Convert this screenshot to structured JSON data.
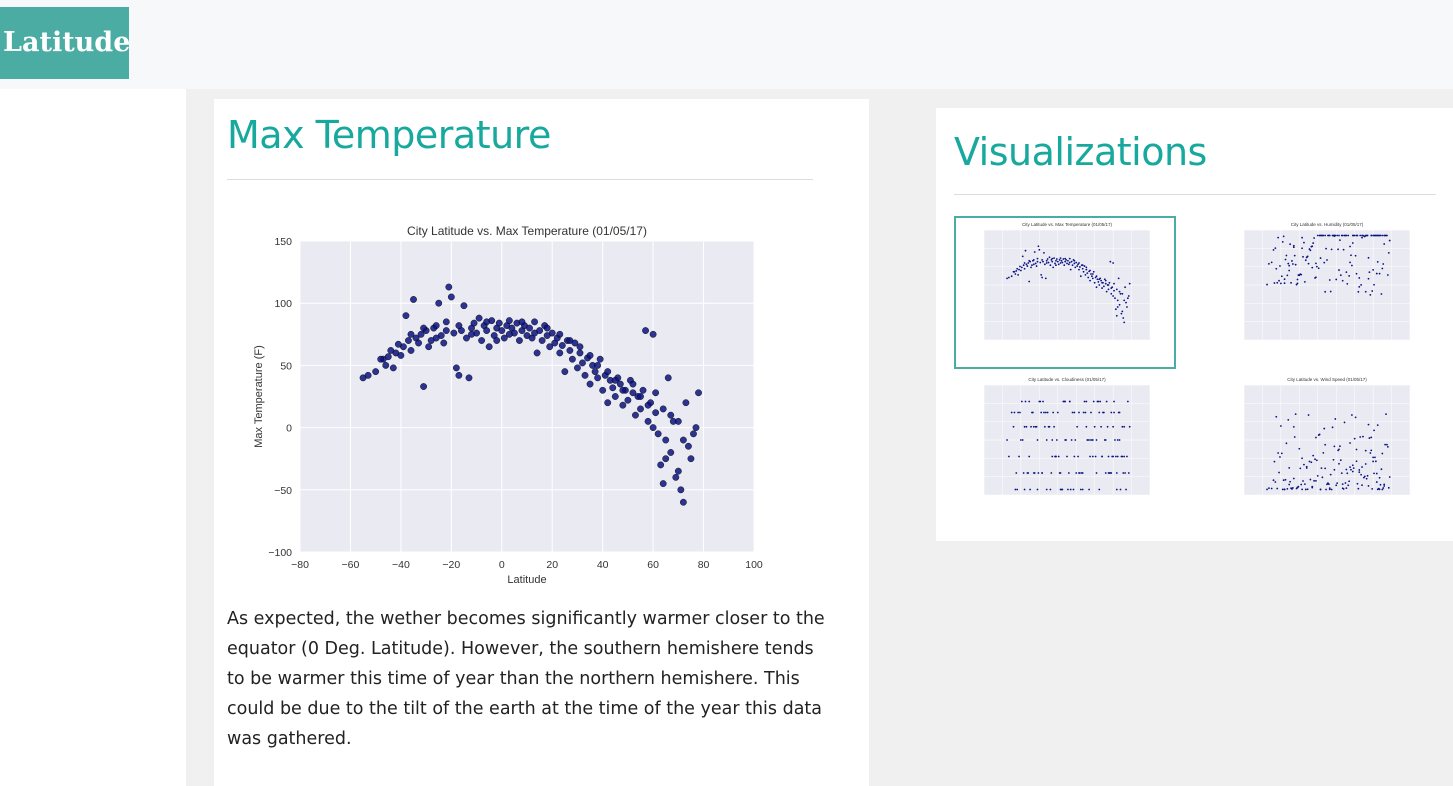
{
  "navbar": {
    "brand": "Latitude"
  },
  "main": {
    "title": "Max Temperature",
    "description": "As expected, the wether becomes significantly warmer closer to the equator (0 Deg. Latitude). However, the southern hemishere tends to be warmer this time of year than the northern hemishere. This could be due to the tilt of the earth at the time of the year this data was gathered."
  },
  "sidebar": {
    "title": "Visualizations",
    "thumbnails": [
      {
        "title": "City Latitude vs. Max Temperature (01/05/17)",
        "selected": true
      },
      {
        "title": "City Latitude vs. Humidity (01/05/17)",
        "selected": false
      },
      {
        "title": "City Latitude vs. Cloudiness (01/05/17)",
        "selected": false
      },
      {
        "title": "City Latitude vs. Wind Speed (01/05/17)",
        "selected": false
      }
    ]
  },
  "colors": {
    "accent": "#17a89e",
    "brand_bg": "#4aaca3",
    "marker": "#0b1380",
    "plot_bg": "#eaeaf2"
  },
  "chart_data": {
    "type": "scatter",
    "title": "City Latitude vs. Max Temperature (01/05/17)",
    "xlabel": "Latitude",
    "ylabel": "Max Temperature (F)",
    "xlim": [
      -80,
      100
    ],
    "ylim": [
      -100,
      150
    ],
    "xticks": [
      -80,
      -60,
      -40,
      -20,
      0,
      20,
      40,
      60,
      80,
      100
    ],
    "yticks": [
      -100,
      -50,
      0,
      50,
      100,
      150
    ],
    "grid": true,
    "points": [
      [
        -55,
        40
      ],
      [
        -53,
        42
      ],
      [
        -50,
        45
      ],
      [
        -47,
        55
      ],
      [
        -46,
        50
      ],
      [
        -45,
        57
      ],
      [
        -43,
        48
      ],
      [
        -42,
        60
      ],
      [
        -40,
        58
      ],
      [
        -39,
        65
      ],
      [
        -38,
        90
      ],
      [
        -37,
        70
      ],
      [
        -36,
        62
      ],
      [
        -35,
        103
      ],
      [
        -34,
        72
      ],
      [
        -33,
        68
      ],
      [
        -32,
        75
      ],
      [
        -31,
        33
      ],
      [
        -30,
        78
      ],
      [
        -29,
        65
      ],
      [
        -28,
        70
      ],
      [
        -27,
        80
      ],
      [
        -26,
        82
      ],
      [
        -25,
        100
      ],
      [
        -24,
        74
      ],
      [
        -23,
        68
      ],
      [
        -22,
        85
      ],
      [
        -21,
        113
      ],
      [
        -20,
        105
      ],
      [
        -19,
        76
      ],
      [
        -18,
        48
      ],
      [
        -17,
        42
      ],
      [
        -16,
        78
      ],
      [
        -15,
        98
      ],
      [
        -14,
        72
      ],
      [
        -13,
        40
      ],
      [
        -12,
        80
      ],
      [
        -11,
        84
      ],
      [
        -10,
        76
      ],
      [
        -9,
        88
      ],
      [
        -8,
        70
      ],
      [
        -7,
        82
      ],
      [
        -6,
        78
      ],
      [
        -5,
        65
      ],
      [
        -4,
        86
      ],
      [
        -3,
        74
      ],
      [
        -2,
        80
      ],
      [
        -1,
        84
      ],
      [
        0,
        78
      ],
      [
        1,
        72
      ],
      [
        2,
        82
      ],
      [
        3,
        86
      ],
      [
        4,
        80
      ],
      [
        5,
        76
      ],
      [
        6,
        84
      ],
      [
        7,
        70
      ],
      [
        8,
        78
      ],
      [
        9,
        82
      ],
      [
        10,
        74
      ],
      [
        11,
        80
      ],
      [
        12,
        72
      ],
      [
        13,
        85
      ],
      [
        14,
        60
      ],
      [
        15,
        78
      ],
      [
        16,
        70
      ],
      [
        17,
        82
      ],
      [
        18,
        74
      ],
      [
        19,
        65
      ],
      [
        20,
        76
      ],
      [
        21,
        68
      ],
      [
        22,
        72
      ],
      [
        23,
        60
      ],
      [
        24,
        66
      ],
      [
        25,
        45
      ],
      [
        26,
        70
      ],
      [
        27,
        62
      ],
      [
        28,
        55
      ],
      [
        29,
        68
      ],
      [
        30,
        48
      ],
      [
        31,
        60
      ],
      [
        32,
        52
      ],
      [
        33,
        42
      ],
      [
        34,
        56
      ],
      [
        35,
        35
      ],
      [
        36,
        50
      ],
      [
        37,
        45
      ],
      [
        38,
        40
      ],
      [
        39,
        55
      ],
      [
        40,
        30
      ],
      [
        41,
        42
      ],
      [
        42,
        20
      ],
      [
        43,
        38
      ],
      [
        44,
        32
      ],
      [
        45,
        25
      ],
      [
        46,
        40
      ],
      [
        47,
        35
      ],
      [
        48,
        18
      ],
      [
        49,
        30
      ],
      [
        50,
        22
      ],
      [
        51,
        38
      ],
      [
        52,
        28
      ],
      [
        53,
        10
      ],
      [
        54,
        25
      ],
      [
        55,
        15
      ],
      [
        56,
        30
      ],
      [
        57,
        78
      ],
      [
        58,
        5
      ],
      [
        59,
        20
      ],
      [
        60,
        75
      ],
      [
        61,
        12
      ],
      [
        62,
        -5
      ],
      [
        63,
        -30
      ],
      [
        64,
        -45
      ],
      [
        65,
        -10
      ],
      [
        66,
        40
      ],
      [
        67,
        -20
      ],
      [
        68,
        5
      ],
      [
        69,
        -40
      ],
      [
        70,
        -35
      ],
      [
        71,
        -50
      ],
      [
        72,
        -60
      ],
      [
        73,
        20
      ],
      [
        74,
        -15
      ],
      [
        75,
        -25
      ],
      [
        76,
        -5
      ],
      [
        77,
        0
      ],
      [
        78,
        28
      ],
      [
        -48,
        55
      ],
      [
        -44,
        62
      ],
      [
        -41,
        67
      ],
      [
        -36,
        75
      ],
      [
        -31,
        80
      ],
      [
        -26,
        72
      ],
      [
        -22,
        78
      ],
      [
        -17,
        82
      ],
      [
        -12,
        75
      ],
      [
        -6,
        85
      ],
      [
        -2,
        70
      ],
      [
        3,
        75
      ],
      [
        8,
        85
      ],
      [
        13,
        76
      ],
      [
        18,
        80
      ],
      [
        23,
        75
      ],
      [
        27,
        70
      ],
      [
        31,
        65
      ],
      [
        35,
        58
      ],
      [
        38,
        50
      ],
      [
        42,
        45
      ],
      [
        45,
        38
      ],
      [
        48,
        30
      ],
      [
        52,
        35
      ],
      [
        55,
        25
      ],
      [
        58,
        18
      ],
      [
        61,
        28
      ],
      [
        64,
        15
      ],
      [
        67,
        10
      ],
      [
        70,
        5
      ],
      [
        72,
        -10
      ],
      [
        65,
        -25
      ],
      [
        60,
        0
      ]
    ]
  }
}
